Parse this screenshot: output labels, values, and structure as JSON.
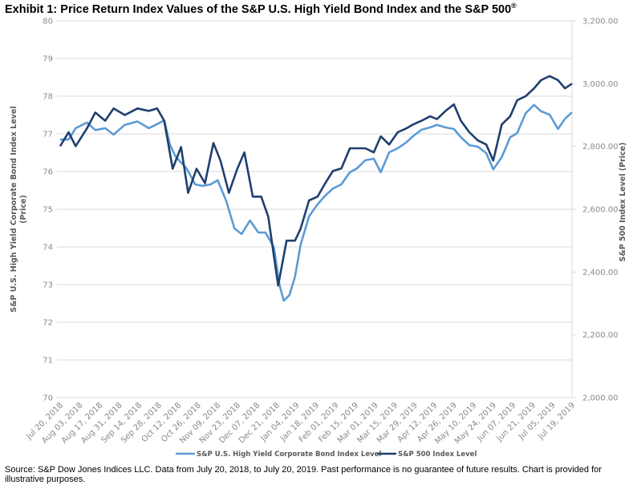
{
  "title": "Exhibit 1: Price Return Index Values of the S&P U.S. High Yield Bond Index and the S&P 500",
  "title_mark": "®",
  "source": "Source: S&P Dow Jones Indices LLC. Data from July 20, 2018, to July 20, 2019. Past performance is no guarantee of future results. Chart is provided for illustrative purposes.",
  "chart_data": {
    "type": "line",
    "title": "Exhibit 1: Price Return Index Values of the S&P U.S. High Yield Bond Index and the S&P 500®",
    "xlabel": "",
    "ylabel": "S&P U.S. High Yield Corporate Bond Index Level (Price)",
    "ylabel_right": "S&P 500 Index Level (Price)",
    "ylim": [
      70,
      80
    ],
    "ylim_right": [
      2000,
      3200
    ],
    "grid": true,
    "legend_position": "bottom",
    "x_tick_labels": [
      "Jul 20, 2018",
      "Aug 03, 2018",
      "Aug 17, 2018",
      "Aug 31, 2018",
      "Sep 14, 2018",
      "Sep 28, 2018",
      "Oct 12, 2018",
      "Oct 26, 2018",
      "Nov 09, 2018",
      "Nov 23, 2018",
      "Dec 07, 2018",
      "Dec 21, 2018",
      "Jan 04, 2019",
      "Jan 18, 2019",
      "Feb 01, 2019",
      "Feb 15, 2019",
      "Mar 01, 2019",
      "Mar 15, 2019",
      "Mar 29, 2019",
      "Apr 12, 2019",
      "Apr 26, 2019",
      "May 10, 2019",
      "May 24, 2019",
      "Jun 07, 2019",
      "Jun 21, 2019",
      "Jul 05, 2019",
      "Jul 19, 2019"
    ],
    "y_tick_labels": [
      "70",
      "71",
      "72",
      "73",
      "74",
      "75",
      "76",
      "77",
      "78",
      "79",
      "80"
    ],
    "y_tick_labels_right": [
      "2,000.00",
      "2,200.00",
      "2,400.00",
      "2,600.00",
      "2,800.00",
      "3,000.00",
      "3,200.00"
    ],
    "x_day_range": [
      0,
      364
    ],
    "series": [
      {
        "name": "S&P U.S. High Yield Corporate Bond Index Level",
        "axis": "left",
        "color": "#5b9bd5",
        "days": [
          0,
          6,
          11,
          19,
          25,
          32,
          38,
          46,
          55,
          63,
          69,
          74,
          78,
          82,
          90,
          96,
          101,
          107,
          112,
          118,
          124,
          129,
          135,
          141,
          146,
          152,
          156,
          159,
          163,
          167,
          171,
          177,
          183,
          188,
          194,
          200,
          206,
          211,
          217,
          223,
          228,
          234,
          240,
          246,
          251,
          257,
          263,
          268,
          274,
          280,
          285,
          291,
          297,
          303,
          308,
          314,
          320,
          325,
          331,
          337,
          342,
          348,
          354,
          359,
          364
        ],
        "values": [
          76.85,
          76.85,
          77.15,
          77.3,
          77.1,
          77.15,
          76.98,
          77.24,
          77.33,
          77.15,
          77.26,
          77.36,
          76.72,
          76.4,
          76.08,
          75.66,
          75.62,
          75.66,
          75.77,
          75.23,
          74.49,
          74.34,
          74.7,
          74.38,
          74.38,
          73.99,
          72.99,
          72.57,
          72.72,
          73.21,
          74.06,
          74.81,
          75.13,
          75.34,
          75.55,
          75.66,
          75.98,
          76.08,
          76.3,
          76.34,
          75.98,
          76.51,
          76.62,
          76.77,
          76.94,
          77.11,
          77.17,
          77.24,
          77.17,
          77.13,
          76.91,
          76.7,
          76.66,
          76.49,
          76.06,
          76.38,
          76.91,
          77.02,
          77.55,
          77.77,
          77.6,
          77.51,
          77.13,
          77.4,
          77.57
        ]
      },
      {
        "name": "S&P 500 Index Level",
        "axis": "right",
        "color": "#1f3f6e",
        "days": [
          0,
          6,
          11,
          19,
          25,
          32,
          38,
          46,
          55,
          63,
          69,
          74,
          80,
          86,
          91,
          97,
          103,
          109,
          114,
          120,
          126,
          131,
          137,
          143,
          148,
          155,
          161,
          167,
          171,
          177,
          183,
          188,
          194,
          200,
          206,
          211,
          217,
          223,
          228,
          234,
          240,
          246,
          251,
          257,
          263,
          268,
          274,
          280,
          285,
          291,
          297,
          303,
          308,
          314,
          320,
          325,
          331,
          337,
          342,
          348,
          354,
          359,
          364
        ],
        "values": [
          2801,
          2845,
          2801,
          2857,
          2908,
          2882,
          2921,
          2900,
          2921,
          2913,
          2921,
          2882,
          2729,
          2798,
          2652,
          2729,
          2683,
          2811,
          2755,
          2652,
          2729,
          2781,
          2640,
          2640,
          2576,
          2357,
          2500,
          2500,
          2538,
          2628,
          2640,
          2679,
          2722,
          2730,
          2794,
          2794,
          2794,
          2781,
          2832,
          2806,
          2845,
          2857,
          2870,
          2882,
          2896,
          2887,
          2913,
          2934,
          2882,
          2845,
          2819,
          2806,
          2755,
          2870,
          2896,
          2947,
          2960,
          2985,
          3011,
          3024,
          3011,
          2985,
          3000
        ]
      }
    ]
  }
}
